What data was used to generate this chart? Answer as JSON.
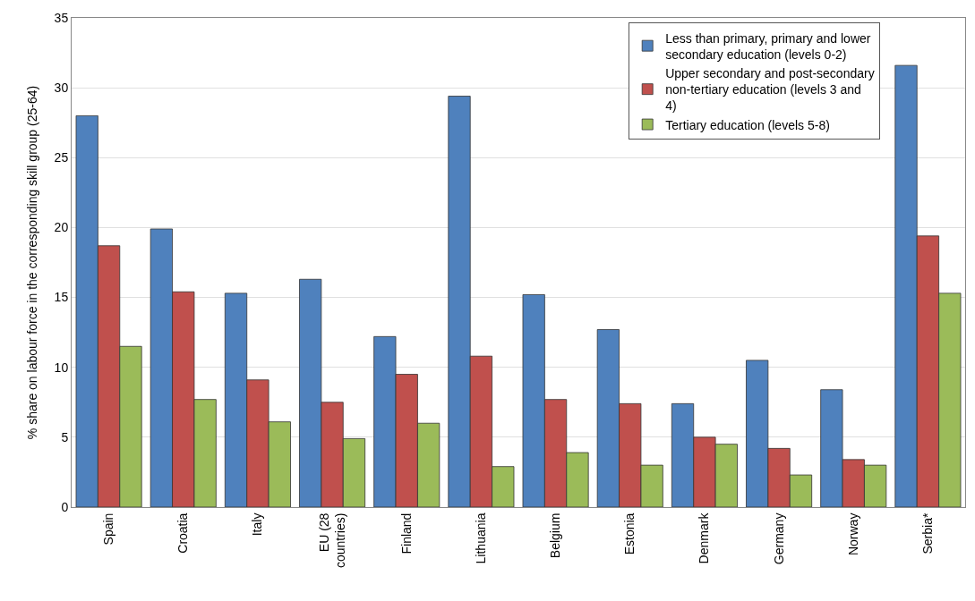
{
  "chart_data": {
    "type": "bar",
    "ylabel": "% share on labour force in the corresponding skill group (25-64)",
    "categories": [
      "Spain",
      "Croatia",
      "Italy",
      "EU (28 countries)",
      "Finland",
      "Lithuania",
      "Belgium",
      "Estonia",
      "Denmark",
      "Germany",
      "Norway",
      "Serbia*"
    ],
    "series": [
      {
        "name": "Less than primary, primary and lower secondary education (levels 0-2)",
        "color": "#4f81bd",
        "values": [
          28.0,
          19.9,
          15.3,
          16.3,
          12.2,
          29.4,
          15.2,
          12.7,
          7.4,
          10.5,
          8.4,
          31.6
        ]
      },
      {
        "name": "Upper secondary and post-secondary non-tertiary education (levels 3 and 4)",
        "color": "#c0504d",
        "values": [
          18.7,
          15.4,
          9.1,
          7.5,
          9.5,
          10.8,
          7.7,
          7.4,
          5.0,
          4.2,
          3.4,
          19.4
        ]
      },
      {
        "name": "Tertiary education (levels 5-8)",
        "color": "#9bbb59",
        "values": [
          11.5,
          7.7,
          6.1,
          4.9,
          6.0,
          2.9,
          3.9,
          3.0,
          4.5,
          2.3,
          3.0,
          15.3
        ]
      }
    ],
    "ylim": [
      0,
      35
    ],
    "yticks": [
      0,
      5,
      10,
      15,
      20,
      25,
      30,
      35
    ],
    "grid": "y",
    "legend": "top right"
  }
}
